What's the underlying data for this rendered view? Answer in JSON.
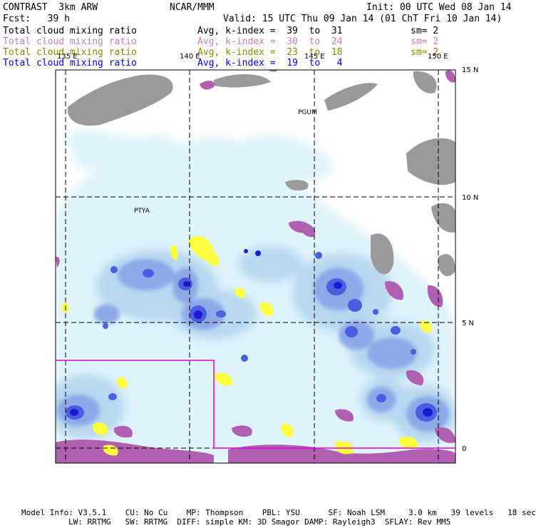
{
  "header": {
    "model": "CONTRAST  3km ARW",
    "org": "NCAR/MMM",
    "init": "Init: 00 UTC Wed 08 Jan 14",
    "fcst": "Fcst:   39 h",
    "valid": "Valid: 15 UTC Thu 09 Jan 14 (01 ChT Fri 10 Jan 14)"
  },
  "fields": [
    {
      "name": "Total cloud mixing ratio",
      "avg": "Avg, k-index =  39  to  31",
      "sm": "sm= 2",
      "color": "#000000"
    },
    {
      "name": "Total cloud mixing ratio",
      "avg": "Avg, k-index =  30  to  24",
      "sm": "sm= 2",
      "color": "#c080c0"
    },
    {
      "name": "Total cloud mixing ratio",
      "avg": "Avg, k-index =  23  to  18",
      "sm": "sm= 2",
      "color": "#8a8a00"
    },
    {
      "name": "Total cloud mixing ratio",
      "avg": "Avg, k-index =  19  to   4",
      "sm": "",
      "color": "#0000ff"
    }
  ],
  "map": {
    "lon_labels": [
      "135 E",
      "140 E",
      "145 E",
      "150 E"
    ],
    "lat_labels": [
      "15 N",
      "10 N",
      "5 N",
      "0"
    ],
    "stations": [
      "PGUM",
      "PTYA"
    ],
    "colors": {
      "light_cyan": "#dff3fb",
      "pale_blue": "#b7d8f0",
      "mid_blue": "#8da8e8",
      "blue": "#4a5fe0",
      "dark_blue": "#1a1ad0",
      "gray": "#9a9a9a",
      "purple": "#b060b0",
      "yellow": "#ffff40",
      "magenta": "#e000e0"
    }
  },
  "footer": {
    "line1": "Model Info: V3.5.1    CU: No Cu    MP: Thompson    PBL: YSU      SF: Noah LSM     3.0 km   39 levels   18 sec",
    "line2": "LW: RRTMG   SW: RRTMG  DIFF: simple KM: 3D Smagor DAMP: Rayleigh3  SFLAY: Rev MM5"
  }
}
